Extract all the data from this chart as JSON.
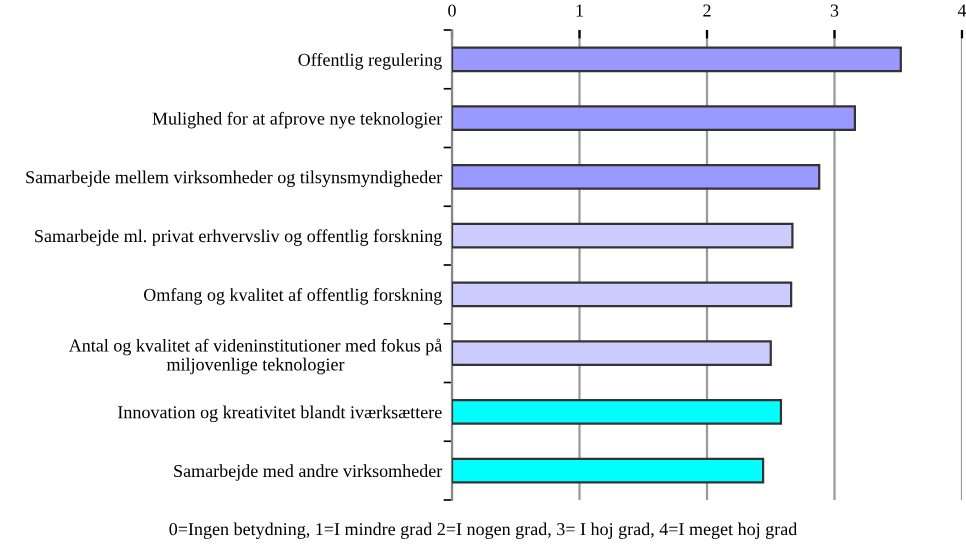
{
  "chart_data": {
    "type": "bar",
    "orientation": "horizontal",
    "categories": [
      "Offentlig regulering",
      "Mulighed for at afprove nye teknologier",
      "Samarbejde mellem virksomheder og tilsynsmyndigheder",
      "Samarbejde ml. privat erhvervsliv og offentlig forskning",
      "Omfang og kvalitet af offentlig forskning",
      "Antal og kvalitet af videninstitutioner med fokus på\nmiljovenlige teknologier",
      "Innovation og kreativitet blandt iværksættere",
      "Samarbejde med andre virksomheder"
    ],
    "values": [
      3.52,
      3.16,
      2.88,
      2.67,
      2.66,
      2.5,
      2.58,
      2.44
    ],
    "colors": [
      "#9999ff",
      "#9999ff",
      "#9999ff",
      "#ccccff",
      "#ccccff",
      "#ccccff",
      "#00ffff",
      "#00ffff"
    ],
    "xlim": [
      0,
      4
    ],
    "xticks": [
      0,
      1,
      2,
      3,
      4
    ],
    "grid": "x",
    "annotations": [
      "0=Ingen betydning, 1=I mindre grad 2=I nogen grad, 3= I hoj grad, 4=I meget hoj grad"
    ]
  }
}
